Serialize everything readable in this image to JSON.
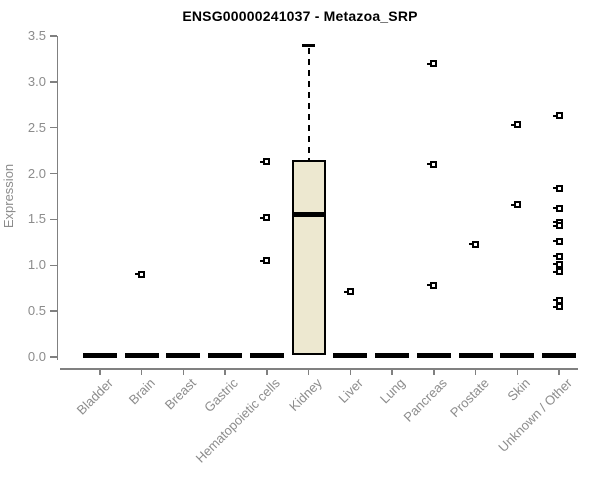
{
  "chart_data": {
    "type": "boxplot",
    "title": "ENSG00000241037 - Metazoa_SRP",
    "xlabel": "",
    "ylabel": "Expression",
    "ylim": [
      0,
      3.5
    ],
    "ytick_labels": [
      "0.0",
      "0.5",
      "1.0",
      "1.5",
      "2.0",
      "2.5",
      "3.0",
      "3.5"
    ],
    "grid": false,
    "legend": null,
    "categories": [
      "Bladder",
      "Brain",
      "Breast",
      "Gastric",
      "Hematopoietic cells",
      "Kidney",
      "Liver",
      "Lung",
      "Pancreas",
      "Prostate",
      "Skin",
      "Unknown / Other"
    ],
    "boxes": [
      {
        "category": "Bladder",
        "median": 0,
        "q1": 0,
        "q3": 0,
        "whisker_low": 0,
        "whisker_high": 0,
        "outliers": []
      },
      {
        "category": "Brain",
        "median": 0,
        "q1": 0,
        "q3": 0,
        "whisker_low": 0,
        "whisker_high": 0,
        "outliers": [
          0.9
        ]
      },
      {
        "category": "Breast",
        "median": 0,
        "q1": 0,
        "q3": 0,
        "whisker_low": 0,
        "whisker_high": 0,
        "outliers": []
      },
      {
        "category": "Gastric",
        "median": 0,
        "q1": 0,
        "q3": 0,
        "whisker_low": 0,
        "whisker_high": 0,
        "outliers": []
      },
      {
        "category": "Hematopoietic cells",
        "median": 0,
        "q1": 0,
        "q3": 0,
        "whisker_low": 0,
        "whisker_high": 0,
        "outliers": [
          2.13,
          1.52,
          1.05
        ]
      },
      {
        "category": "Kidney",
        "median": 1.55,
        "q1": 0.02,
        "q3": 2.15,
        "whisker_low": 0,
        "whisker_high": 3.4,
        "outliers": []
      },
      {
        "category": "Liver",
        "median": 0,
        "q1": 0,
        "q3": 0,
        "whisker_low": 0,
        "whisker_high": 0,
        "outliers": [
          0.71
        ]
      },
      {
        "category": "Lung",
        "median": 0,
        "q1": 0,
        "q3": 0,
        "whisker_low": 0,
        "whisker_high": 0,
        "outliers": []
      },
      {
        "category": "Pancreas",
        "median": 0,
        "q1": 0,
        "q3": 0,
        "whisker_low": 0,
        "whisker_high": 0,
        "outliers": [
          3.2,
          2.1,
          0.78
        ]
      },
      {
        "category": "Prostate",
        "median": 0,
        "q1": 0,
        "q3": 0,
        "whisker_low": 0,
        "whisker_high": 0,
        "outliers": [
          1.23
        ]
      },
      {
        "category": "Skin",
        "median": 0,
        "q1": 0,
        "q3": 0,
        "whisker_low": 0,
        "whisker_high": 0,
        "outliers": [
          2.53,
          1.66
        ]
      },
      {
        "category": "Unknown / Other",
        "median": 0,
        "q1": 0,
        "q3": 0,
        "whisker_low": 0,
        "whisker_high": 0,
        "outliers": [
          2.63,
          1.84,
          1.62,
          1.47,
          1.43,
          1.26,
          1.1,
          1.01,
          0.93,
          0.62,
          0.55
        ]
      }
    ],
    "colors": {
      "box_fill": "#EDE8D0",
      "box_border": "#000000",
      "median": "#000000",
      "outlier": "#000000",
      "axis": "#808080",
      "tick_text": "#8c8c8c",
      "title_text": "#000000"
    }
  }
}
